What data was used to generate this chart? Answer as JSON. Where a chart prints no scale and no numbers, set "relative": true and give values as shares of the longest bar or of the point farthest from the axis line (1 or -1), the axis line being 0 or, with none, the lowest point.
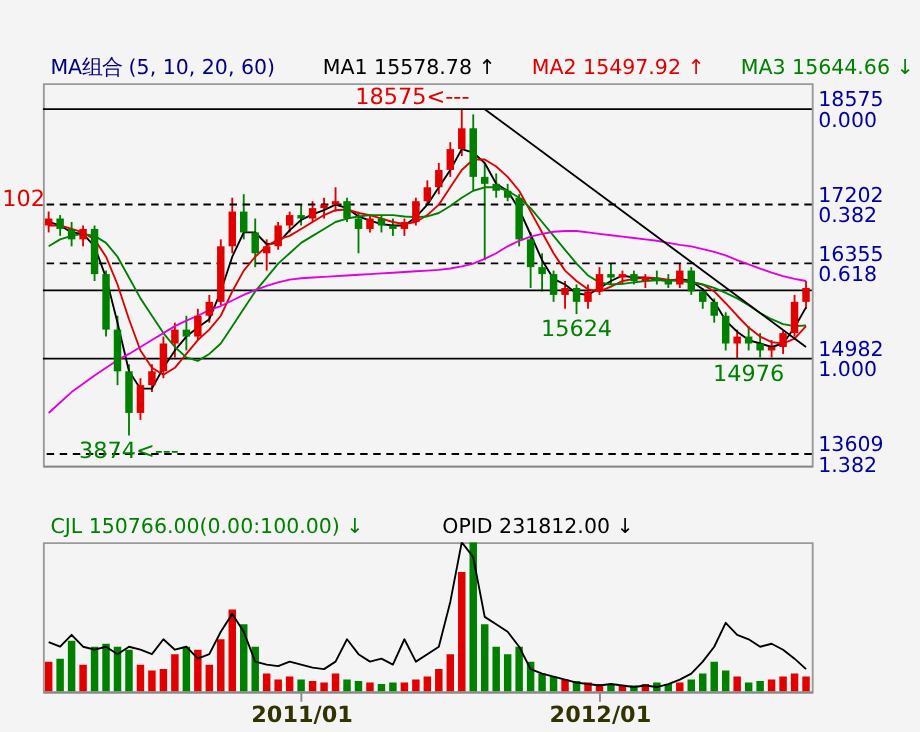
{
  "chart_data": [
    {
      "type": "candlestick",
      "title": "MA组合 (5, 10, 20, 60)",
      "legend": "top",
      "grid": false,
      "tick_labels": "y",
      "x": [
        "2010-03-01",
        "2010-03-15",
        "2010-03-29",
        "2010-04-12",
        "2010-04-26",
        "2010-05-10",
        "2010-05-24",
        "2010-06-07",
        "2010-06-21",
        "2010-07-05",
        "2010-07-19",
        "2010-08-02",
        "2010-08-16",
        "2010-08-30",
        "2010-09-13",
        "2010-09-27",
        "2010-10-11",
        "2010-10-25",
        "2010-11-08",
        "2010-11-22",
        "2010-12-06",
        "2010-12-20",
        "2011-01-03",
        "2011-01-17",
        "2011-01-31",
        "2011-02-14",
        "2011-02-28",
        "2011-03-14",
        "2011-03-28",
        "2011-04-11",
        "2011-04-25",
        "2011-05-09",
        "2011-05-23",
        "2011-06-06",
        "2011-06-20",
        "2011-07-04",
        "2011-07-18",
        "2011-08-01",
        "2011-08-15",
        "2011-08-29",
        "2011-09-12",
        "2011-09-26",
        "2011-10-10",
        "2011-10-24",
        "2011-11-07",
        "2011-11-21",
        "2011-12-05",
        "2011-12-19",
        "2012-01-02",
        "2012-01-16",
        "2012-01-30",
        "2012-02-13",
        "2012-02-27",
        "2012-03-12",
        "2012-03-26",
        "2012-04-09",
        "2012-04-23",
        "2012-05-07",
        "2012-05-21",
        "2012-06-04",
        "2012-06-18",
        "2012-07-02",
        "2012-07-16",
        "2012-07-30",
        "2012-08-13",
        "2012-08-27",
        "2012-09-10"
      ],
      "ohlc": [
        [
          16900,
          17102,
          16800,
          17000
        ],
        [
          17000,
          17050,
          16750,
          16850
        ],
        [
          16850,
          16950,
          16600,
          16700
        ],
        [
          16700,
          16900,
          16600,
          16850
        ],
        [
          16850,
          16900,
          16100,
          16200
        ],
        [
          16200,
          16250,
          15300,
          15400
        ],
        [
          15400,
          15600,
          14600,
          14800
        ],
        [
          14800,
          14900,
          13874,
          14200
        ],
        [
          14200,
          14700,
          14100,
          14600
        ],
        [
          14600,
          14900,
          14500,
          14800
        ],
        [
          14800,
          15300,
          14700,
          15200
        ],
        [
          15200,
          15500,
          15000,
          15400
        ],
        [
          15400,
          15600,
          15100,
          15300
        ],
        [
          15300,
          15700,
          15250,
          15600
        ],
        [
          15600,
          15900,
          15500,
          15800
        ],
        [
          15800,
          16700,
          15750,
          16600
        ],
        [
          16600,
          17300,
          16500,
          17100
        ],
        [
          17100,
          17350,
          16700,
          16800
        ],
        [
          16800,
          17000,
          16300,
          16500
        ],
        [
          16500,
          16700,
          16250,
          16600
        ],
        [
          16600,
          16950,
          16550,
          16900
        ],
        [
          16900,
          17100,
          16800,
          17050
        ],
        [
          17050,
          17200,
          16900,
          17000
        ],
        [
          17000,
          17250,
          16950,
          17150
        ],
        [
          17150,
          17300,
          17000,
          17200
        ],
        [
          17200,
          17450,
          17100,
          17250
        ],
        [
          17250,
          17300,
          16950,
          17000
        ],
        [
          17000,
          17100,
          16500,
          16850
        ],
        [
          16850,
          17050,
          16800,
          17000
        ],
        [
          17000,
          17050,
          16800,
          16900
        ],
        [
          16900,
          17000,
          16750,
          16850
        ],
        [
          16850,
          17000,
          16750,
          16950
        ],
        [
          16950,
          17300,
          16900,
          17250
        ],
        [
          17250,
          17550,
          17200,
          17450
        ],
        [
          17450,
          17800,
          17350,
          17700
        ],
        [
          17700,
          18100,
          17600,
          18000
        ],
        [
          18000,
          18575,
          17900,
          18300
        ],
        [
          18300,
          18500,
          17400,
          17600
        ],
        [
          17600,
          17800,
          16400,
          17500
        ],
        [
          17500,
          17650,
          17300,
          17400
        ],
        [
          17400,
          17500,
          17250,
          17300
        ],
        [
          17300,
          17350,
          16600,
          16700
        ],
        [
          16700,
          16800,
          16000,
          16300
        ],
        [
          16300,
          16500,
          15950,
          16200
        ],
        [
          16200,
          16250,
          15800,
          15900
        ],
        [
          15900,
          16100,
          15700,
          16000
        ],
        [
          16000,
          16050,
          15624,
          15800
        ],
        [
          15800,
          16050,
          15700,
          15950
        ],
        [
          15950,
          16300,
          15900,
          16200
        ],
        [
          16200,
          16350,
          16050,
          16150
        ],
        [
          16150,
          16250,
          16050,
          16200
        ],
        [
          16200,
          16250,
          16050,
          16100
        ],
        [
          16100,
          16200,
          16000,
          16150
        ],
        [
          16150,
          16250,
          16050,
          16100
        ],
        [
          16100,
          16200,
          16000,
          16050
        ],
        [
          16050,
          16350,
          16000,
          16250
        ],
        [
          16250,
          16300,
          15900,
          15950
        ],
        [
          15950,
          16000,
          15700,
          15800
        ],
        [
          15800,
          15850,
          15500,
          15600
        ],
        [
          15600,
          15650,
          15100,
          15200
        ],
        [
          15200,
          15400,
          14976,
          15300
        ],
        [
          15300,
          15450,
          15100,
          15200
        ],
        [
          15200,
          15350,
          15000,
          15100
        ],
        [
          15100,
          15250,
          15000,
          15150
        ],
        [
          15150,
          15400,
          15050,
          15350
        ],
        [
          15350,
          15900,
          15300,
          15800
        ],
        [
          15800,
          16100,
          15700,
          16000
        ]
      ],
      "xlim": [
        "2010-02-22",
        "2012-09-17"
      ],
      "ylim": [
        13440,
        18950
      ],
      "yticks": [
        18575,
        17202,
        16355,
        14982,
        13609
      ],
      "y2lim": [
        1.429,
        -0.104
      ],
      "y2ticks": [
        {
          "value": 0,
          "label": "0.000"
        },
        {
          "value": 0.382,
          "label": "0.382"
        },
        {
          "value": 0.618,
          "label": "0.618"
        },
        {
          "value": 1,
          "label": "1.000"
        },
        {
          "value": 1.382,
          "label": "1.382"
        }
      ],
      "series": [
        {
          "name": "MA1 15578.78 ↑",
          "type": "line",
          "color": "#000000",
          "values": [
            16950,
            16900,
            16800,
            16780,
            16600,
            16150,
            15500,
            14800,
            14550,
            14550,
            14850,
            15100,
            15300,
            15430,
            15550,
            15950,
            16450,
            16800,
            16800,
            16630,
            16650,
            16830,
            16980,
            17060,
            17120,
            17200,
            17150,
            17030,
            16970,
            16920,
            16900,
            16900,
            17020,
            17200,
            17450,
            17700,
            18000,
            17950,
            17800,
            17500,
            17400,
            17130,
            16770,
            16400,
            16130,
            16050,
            15920,
            15900,
            16000,
            16100,
            16180,
            16150,
            16150,
            16120,
            16100,
            16130,
            16100,
            15980,
            15800,
            15530,
            15370,
            15250,
            15200,
            15150,
            15200,
            15430,
            15720
          ]
        },
        {
          "name": "MA2 15497.92 ↑",
          "type": "line",
          "color": "#e00000",
          "values": [
            16900,
            16900,
            16850,
            16800,
            16700,
            16450,
            16050,
            15550,
            15100,
            14850,
            14750,
            14850,
            15050,
            15250,
            15400,
            15600,
            15950,
            16250,
            16450,
            16600,
            16700,
            16750,
            16850,
            16950,
            17050,
            17120,
            17130,
            17080,
            17050,
            17000,
            16950,
            16920,
            16950,
            17050,
            17200,
            17450,
            17700,
            17850,
            17850,
            17750,
            17600,
            17400,
            17100,
            16800,
            16500,
            16250,
            16100,
            15980,
            15950,
            16020,
            16100,
            16130,
            16150,
            16140,
            16120,
            16110,
            16090,
            16050,
            15950,
            15780,
            15600,
            15430,
            15300,
            15220,
            15200,
            15270,
            15450
          ]
        },
        {
          "name": "MA3 15644.66 ↓",
          "type": "line",
          "color": "#008000",
          "values": [
            16600,
            16700,
            16750,
            16780,
            16750,
            16650,
            16450,
            16150,
            15850,
            15600,
            15350,
            15150,
            15000,
            14950,
            15050,
            15200,
            15450,
            15700,
            15950,
            16150,
            16350,
            16500,
            16650,
            16750,
            16850,
            16950,
            17000,
            17030,
            17050,
            17050,
            17050,
            17030,
            17020,
            17030,
            17080,
            17180,
            17300,
            17400,
            17450,
            17450,
            17400,
            17300,
            17150,
            16950,
            16750,
            16550,
            16350,
            16180,
            16080,
            16050,
            16060,
            16080,
            16100,
            16110,
            16110,
            16100,
            16080,
            16050,
            16000,
            15930,
            15850,
            15750,
            15640,
            15550,
            15480,
            15450,
            15460
          ]
        },
        {
          "type": "line",
          "color": "#e000e0",
          "values": [
            14200,
            14350,
            14500,
            14620,
            14740,
            14850,
            14960,
            15050,
            15150,
            15250,
            15350,
            15450,
            15530,
            15600,
            15680,
            15740,
            15820,
            15900,
            15970,
            16030,
            16080,
            16120,
            16140,
            16150,
            16160,
            16170,
            16180,
            16190,
            16200,
            16210,
            16220,
            16230,
            16240,
            16250,
            16260,
            16280,
            16310,
            16350,
            16420,
            16500,
            16600,
            16680,
            16740,
            16780,
            16810,
            16820,
            16820,
            16800,
            16780,
            16760,
            16740,
            16720,
            16700,
            16680,
            16650,
            16620,
            16600,
            16560,
            16520,
            16470,
            16400,
            16340,
            16280,
            16220,
            16170,
            16130,
            16100
          ]
        },
        {
          "type": "line",
          "color": "#000000",
          "x": [
            "2011-08-15",
            "2012-09-10"
          ],
          "values": [
            18575,
            15150
          ]
        }
      ],
      "ref_lines": [
        {
          "axis": "y",
          "value": 18575,
          "line_style": "solid",
          "color": "#000000"
        },
        {
          "axis": "y",
          "value": 17202,
          "line_style": "dashed",
          "color": "#000000"
        },
        {
          "axis": "y",
          "value": 16355,
          "line_style": "dashed",
          "color": "#000000"
        },
        {
          "axis": "y",
          "value": 15966,
          "line_style": "solid",
          "color": "#000000"
        },
        {
          "axis": "y",
          "value": 14982,
          "line_style": "solid",
          "color": "#000000"
        },
        {
          "axis": "y",
          "value": 13609,
          "line_style": "dashed",
          "color": "#000000"
        }
      ],
      "annotations": [
        {
          "text": "18575<---",
          "x": "2011-08-01",
          "y": 18575
        },
        {
          "text": "3874<---",
          "x": "2010-06-07",
          "y": 13874
        },
        {
          "text": "102",
          "x": "2010-03-01",
          "y": 17102
        },
        {
          "text": "15624",
          "x": "2011-12-05",
          "y": 15624
        },
        {
          "text": "14976",
          "x": "2012-07-02",
          "y": 14976
        }
      ]
    },
    {
      "type": "bar",
      "relative": true,
      "legend": "top",
      "tick_labels": "x",
      "x": [
        "2010-03-01",
        "2010-03-15",
        "2010-03-29",
        "2010-04-12",
        "2010-04-26",
        "2010-05-10",
        "2010-05-24",
        "2010-06-07",
        "2010-06-21",
        "2010-07-05",
        "2010-07-19",
        "2010-08-02",
        "2010-08-16",
        "2010-08-30",
        "2010-09-13",
        "2010-09-27",
        "2010-10-11",
        "2010-10-25",
        "2010-11-08",
        "2010-11-22",
        "2010-12-06",
        "2010-12-20",
        "2011-01-03",
        "2011-01-17",
        "2011-01-31",
        "2011-02-14",
        "2011-02-28",
        "2011-03-14",
        "2011-03-28",
        "2011-04-11",
        "2011-04-25",
        "2011-05-09",
        "2011-05-23",
        "2011-06-06",
        "2011-06-20",
        "2011-07-04",
        "2011-07-18",
        "2011-08-01",
        "2011-08-15",
        "2011-08-29",
        "2011-09-12",
        "2011-09-26",
        "2011-10-10",
        "2011-10-24",
        "2011-11-07",
        "2011-11-21",
        "2011-12-05",
        "2011-12-19",
        "2012-01-02",
        "2012-01-16",
        "2012-01-30",
        "2012-02-13",
        "2012-02-27",
        "2012-03-12",
        "2012-03-26",
        "2012-04-09",
        "2012-04-23",
        "2012-05-07",
        "2012-05-21",
        "2012-06-04",
        "2012-06-18",
        "2012-07-02",
        "2012-07-16",
        "2012-07-30",
        "2012-08-13",
        "2012-08-27",
        "2012-09-10"
      ],
      "xlim": [
        "2010-02-22",
        "2012-09-17"
      ],
      "xticks": [
        {
          "value": "2011-01-03",
          "label": "2011/01"
        },
        {
          "value": "2012-01-02",
          "label": "2012/01"
        }
      ],
      "series": [
        {
          "name": "CJL 150766.00(0.00:100.00) ↓",
          "type": "bar",
          "color": "#008000",
          "colors": [
            "#e00000",
            "#008000",
            "#008000",
            "#e00000",
            "#008000",
            "#008000",
            "#008000",
            "#008000",
            "#e00000",
            "#e00000",
            "#e00000",
            "#e00000",
            "#008000",
            "#e00000",
            "#e00000",
            "#e00000",
            "#e00000",
            "#008000",
            "#008000",
            "#e00000",
            "#e00000",
            "#e00000",
            "#008000",
            "#e00000",
            "#e00000",
            "#e00000",
            "#008000",
            "#008000",
            "#e00000",
            "#008000",
            "#008000",
            "#e00000",
            "#e00000",
            "#e00000",
            "#e00000",
            "#e00000",
            "#e00000",
            "#008000",
            "#008000",
            "#008000",
            "#008000",
            "#008000",
            "#008000",
            "#008000",
            "#008000",
            "#e00000",
            "#008000",
            "#e00000",
            "#e00000",
            "#008000",
            "#e00000",
            "#008000",
            "#e00000",
            "#008000",
            "#008000",
            "#e00000",
            "#008000",
            "#008000",
            "#008000",
            "#008000",
            "#e00000",
            "#008000",
            "#008000",
            "#e00000",
            "#e00000",
            "#e00000",
            "#e00000"
          ],
          "values": [
            0.2,
            0.22,
            0.34,
            0.18,
            0.3,
            0.32,
            0.3,
            0.28,
            0.18,
            0.14,
            0.15,
            0.25,
            0.3,
            0.28,
            0.18,
            0.35,
            0.55,
            0.45,
            0.3,
            0.12,
            0.08,
            0.1,
            0.08,
            0.07,
            0.06,
            0.12,
            0.08,
            0.07,
            0.06,
            0.05,
            0.06,
            0.06,
            0.08,
            0.1,
            0.15,
            0.25,
            0.8,
            1.0,
            0.45,
            0.3,
            0.25,
            0.3,
            0.2,
            0.12,
            0.1,
            0.08,
            0.07,
            0.06,
            0.05,
            0.05,
            0.04,
            0.04,
            0.05,
            0.06,
            0.05,
            0.06,
            0.08,
            0.12,
            0.2,
            0.14,
            0.1,
            0.06,
            0.07,
            0.08,
            0.1,
            0.12,
            0.1
          ]
        },
        {
          "name": "OPID 231812.00 ↓",
          "type": "line",
          "color": "#000000",
          "values": [
            0.33,
            0.3,
            0.38,
            0.3,
            0.28,
            0.3,
            0.25,
            0.3,
            0.28,
            0.25,
            0.35,
            0.28,
            0.3,
            0.22,
            0.25,
            0.4,
            0.52,
            0.4,
            0.2,
            0.18,
            0.17,
            0.2,
            0.18,
            0.16,
            0.15,
            0.2,
            0.35,
            0.25,
            0.2,
            0.22,
            0.18,
            0.35,
            0.2,
            0.25,
            0.3,
            0.6,
            1.0,
            0.9,
            0.5,
            0.45,
            0.4,
            0.3,
            0.15,
            0.12,
            0.1,
            0.08,
            0.06,
            0.05,
            0.04,
            0.05,
            0.04,
            0.03,
            0.04,
            0.03,
            0.05,
            0.08,
            0.12,
            0.2,
            0.3,
            0.46,
            0.38,
            0.35,
            0.3,
            0.32,
            0.28,
            0.22,
            0.15
          ]
        }
      ]
    }
  ]
}
